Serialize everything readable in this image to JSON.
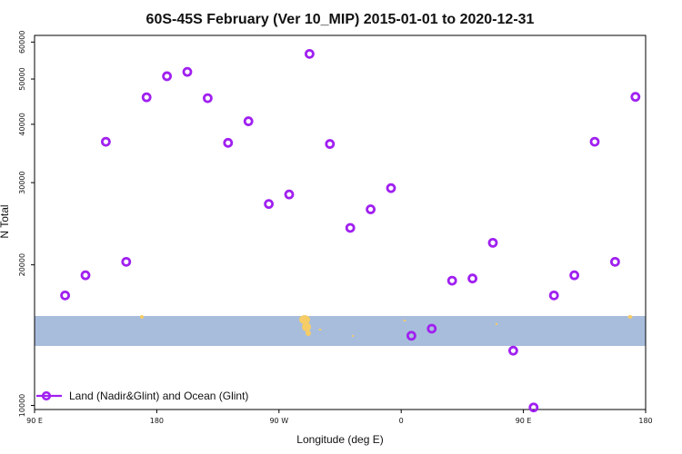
{
  "chart_data": {
    "type": "scatter",
    "title": "60S-45S February (Ver 10_MIP)   2015-01-01 to 2020-12-31",
    "xlabel": "Longitude (deg E)",
    "ylabel": "N Total",
    "x_ticks": [
      {
        "value": 90,
        "label": "90 E"
      },
      {
        "value": 180,
        "label": "180"
      },
      {
        "value": 270,
        "label": "90 W"
      },
      {
        "value": 360,
        "label": "0"
      },
      {
        "value": 450,
        "label": "90 E"
      },
      {
        "value": 540,
        "label": "180"
      }
    ],
    "xlim": [
      90,
      540
    ],
    "y_scale": "log",
    "y_ticks": [
      10000,
      20000,
      30000,
      40000,
      50000,
      60000
    ],
    "ylim": [
      9800,
      62000
    ],
    "grid": false,
    "legend_position": "bottom-left",
    "series": [
      {
        "name": "Land (Nadir&Glint) and Ocean (Glint)",
        "color": "#a020f0",
        "marker": "open-circle",
        "x": [
          112.5,
          127.5,
          142.5,
          157.5,
          172.5,
          187.5,
          202.5,
          217.5,
          232.5,
          247.5,
          262.5,
          277.5,
          292.5,
          307.5,
          322.5,
          337.5,
          352.5,
          367.5,
          382.5,
          397.5,
          412.5,
          427.5,
          442.5,
          457.5,
          472.5,
          487.5,
          502.5,
          517.5,
          532.5
        ],
        "y": [
          17200,
          19000,
          36700,
          20300,
          45700,
          50700,
          51800,
          45500,
          36500,
          40600,
          27000,
          28300,
          56600,
          36300,
          24000,
          26300,
          29200,
          14100,
          14600,
          18500,
          18700,
          22300,
          13100,
          9900,
          17200,
          19000,
          36700,
          20300,
          45800
        ]
      }
    ],
    "map_band": {
      "ocean_color": "#a8bddc",
      "land_color": "#f5cc66",
      "lat_range": [
        -60,
        -45
      ]
    }
  }
}
